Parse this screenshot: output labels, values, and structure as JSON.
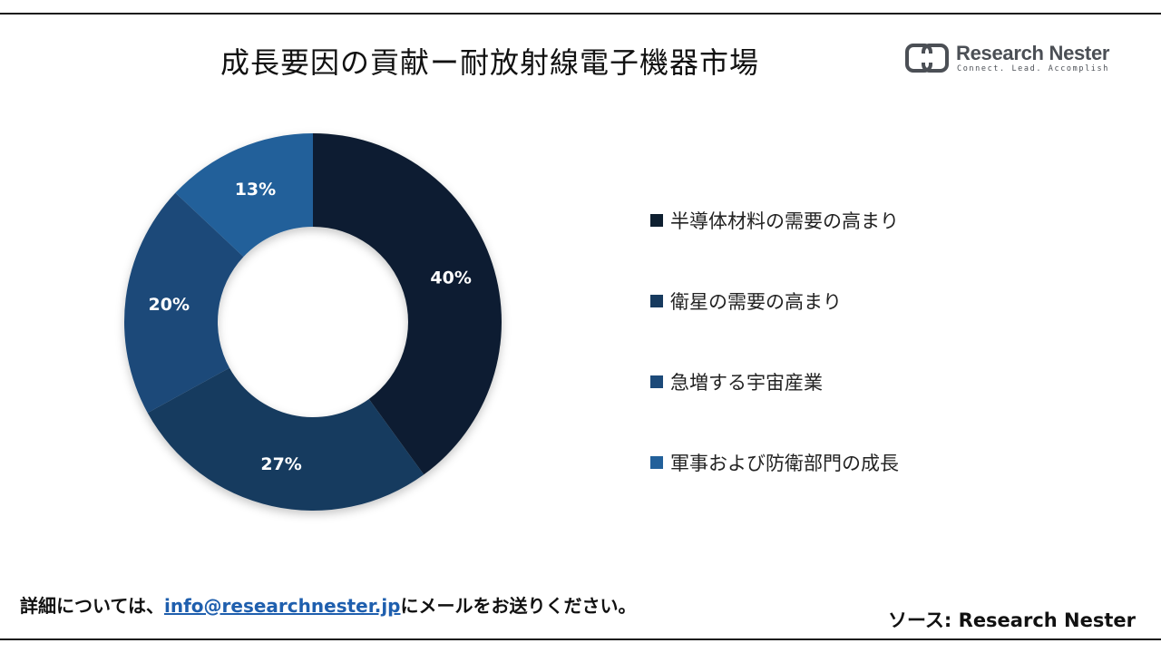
{
  "header": {
    "title": "成長要因の貢献ー耐放射線電子機器市場"
  },
  "logo": {
    "name": "Research Nester",
    "tagline": "Connect. Lead. Accomplish",
    "color": "#4b4f55"
  },
  "chart_data": {
    "type": "pie",
    "style": "donut",
    "title": "成長要因の貢献ー耐放射線電子機器市場",
    "legend_position": "right",
    "series": [
      {
        "name": "半導体材料の需要の高まり",
        "value": 40,
        "label": "40%",
        "color": "#0e1f30"
      },
      {
        "name": "衛星の需要の高まり",
        "value": 27,
        "label": "27%",
        "color": "#173a5e"
      },
      {
        "name": "急増する宇宙産業",
        "value": 20,
        "label": "20%",
        "color": "#1c4a79"
      },
      {
        "name": "軍事および防衛部門の成長",
        "value": 13,
        "label": "13%",
        "color": "#22609a"
      }
    ]
  },
  "footer": {
    "note_prefix": "詳細については、",
    "email": "info@researchnester.jp",
    "note_suffix": "にメールをお送りください。",
    "source": "ソース: Research Nester",
    "link_color": "#1f5fae"
  }
}
